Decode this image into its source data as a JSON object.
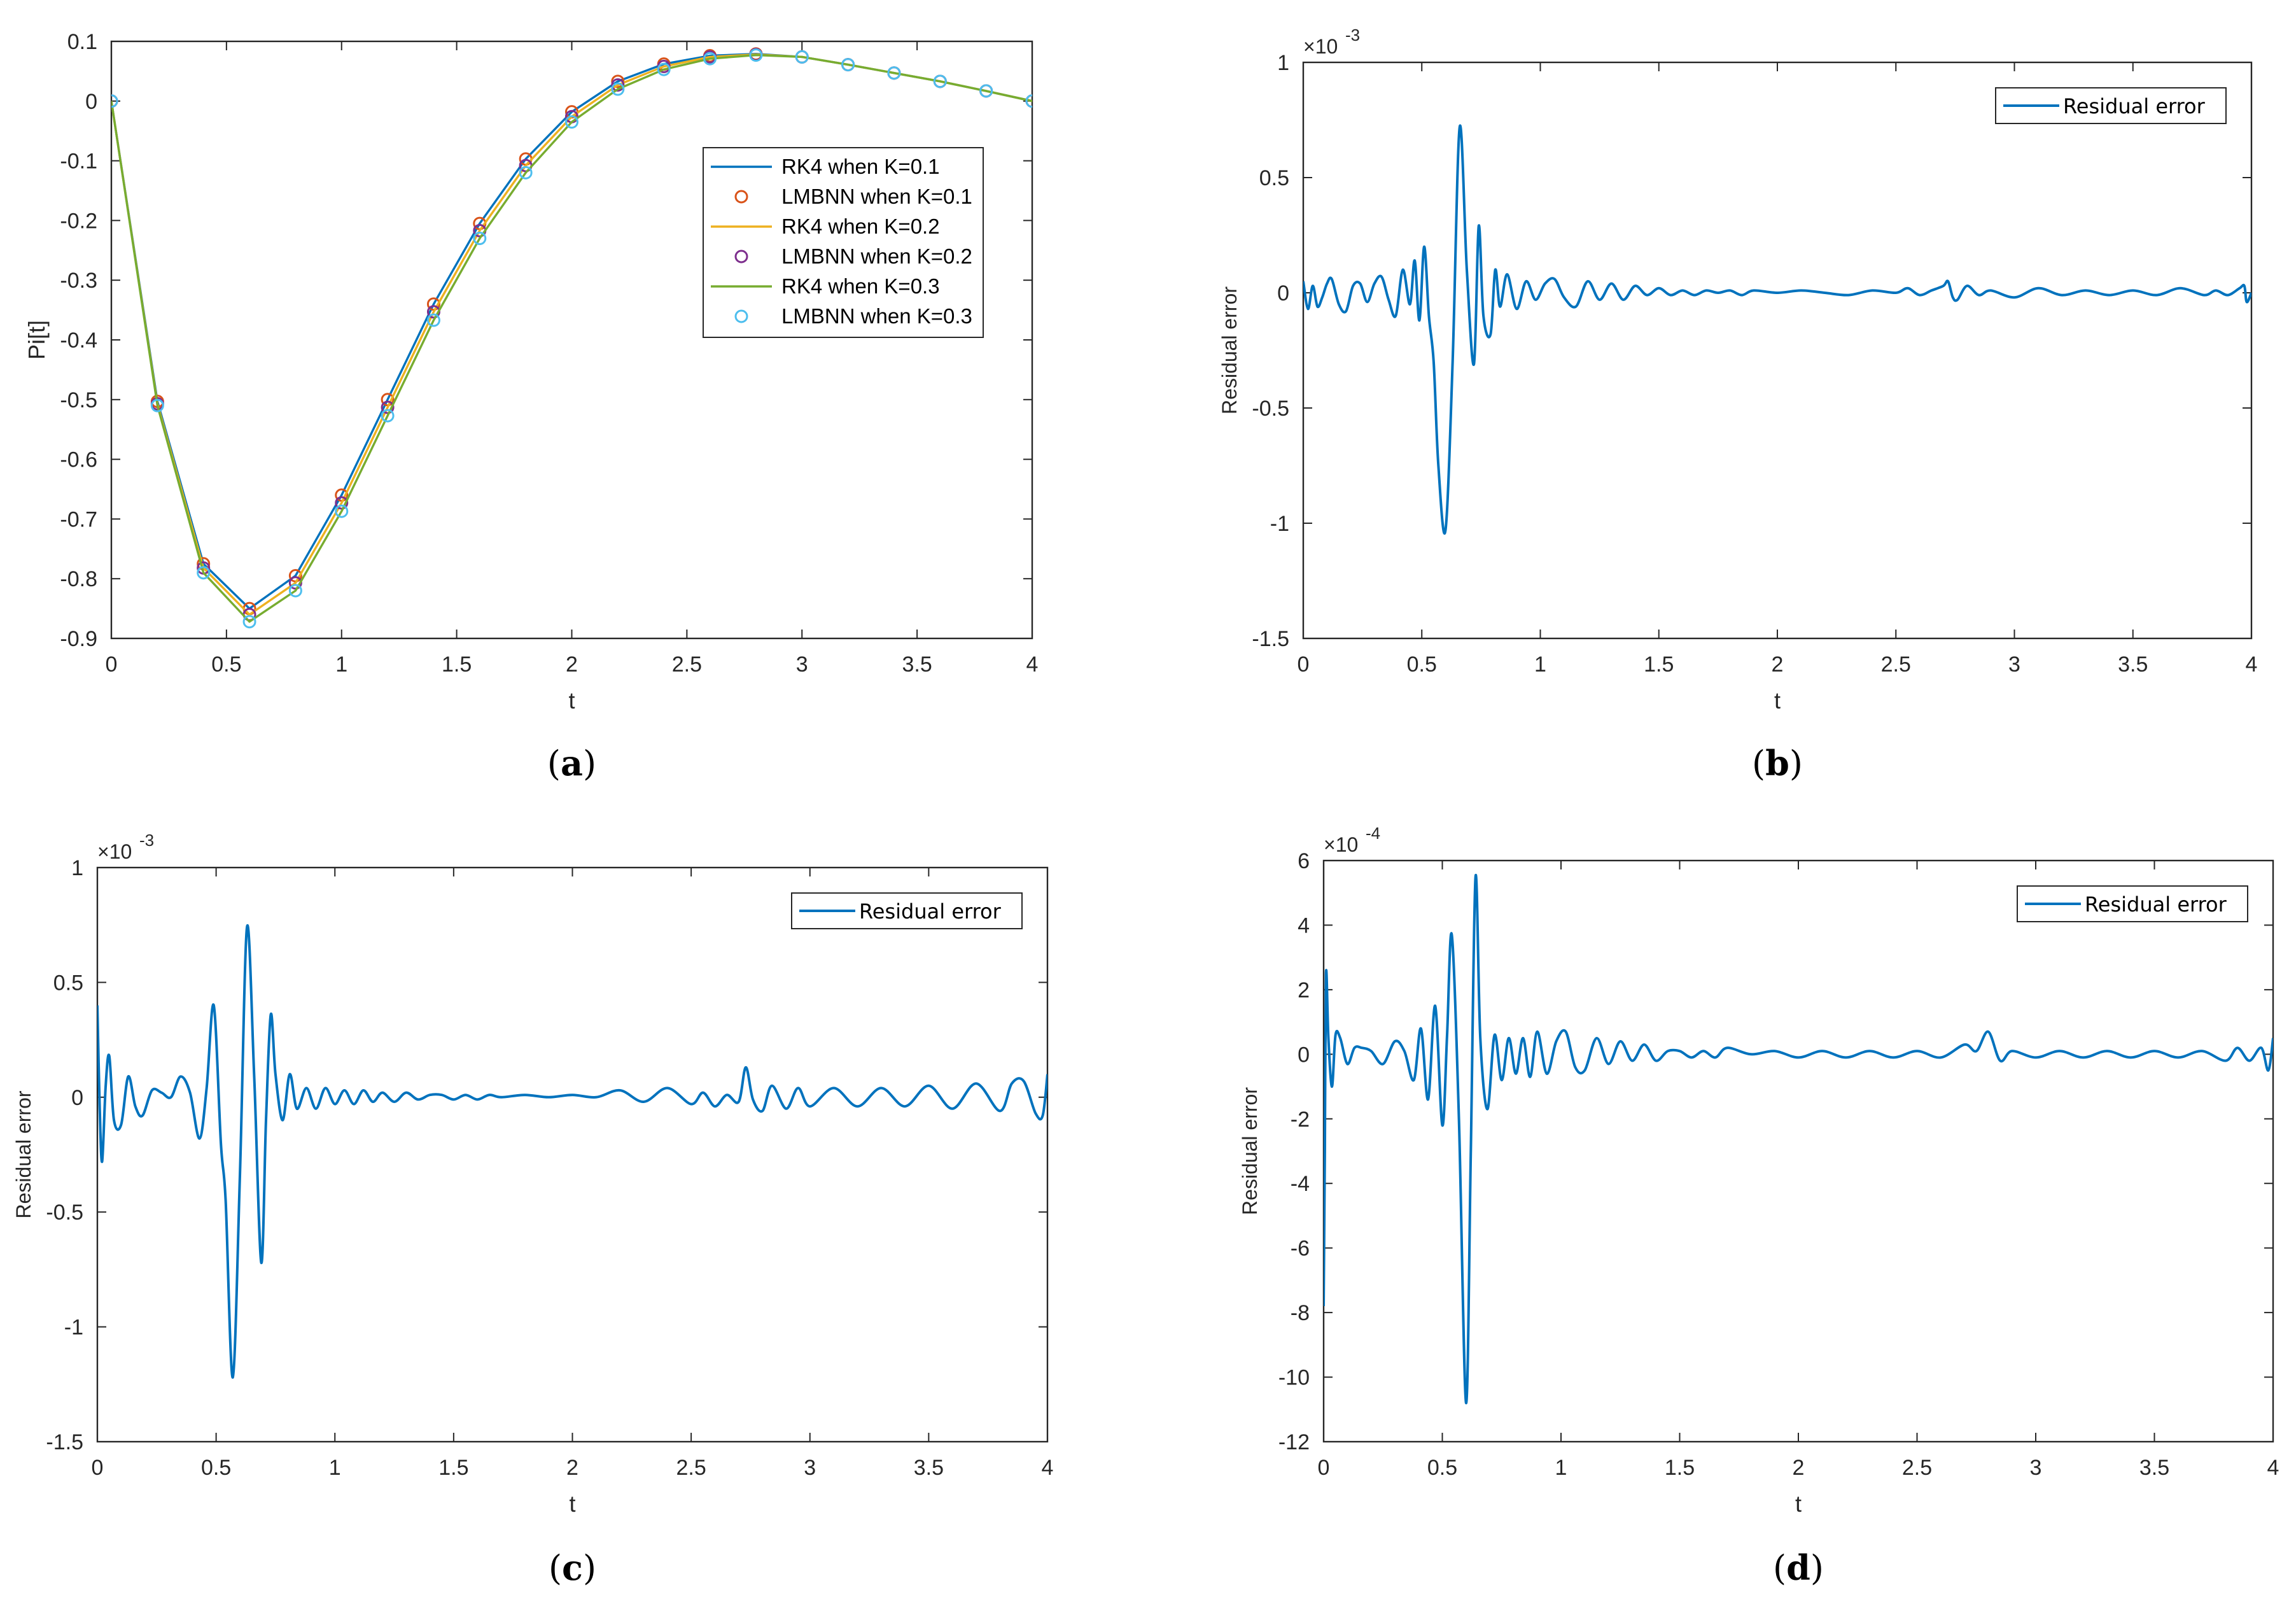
{
  "colors": {
    "rk4_k01": "#0072bd",
    "lmbnn_k01": "#d95319",
    "rk4_k02": "#edb120",
    "lmbnn_k02": "#7e2f8e",
    "rk4_k03": "#77ac30",
    "lmbnn_k03": "#4dbeee",
    "residual": "#0072bd",
    "axis": "#262626"
  },
  "chart_data": [
    {
      "id": "a",
      "type": "line",
      "caption": "a",
      "xlabel": "t",
      "ylabel": "Pi[t]",
      "xlim": [
        0,
        4
      ],
      "ylim": [
        -0.9,
        0.1
      ],
      "xticks": [
        0,
        0.5,
        1,
        1.5,
        2,
        2.5,
        3,
        3.5,
        4
      ],
      "xtick_labels": [
        "0",
        "0.5",
        "1",
        "1.5",
        "2",
        "2.5",
        "3",
        "3.5",
        "4"
      ],
      "yticks": [
        0.1,
        0,
        -0.1,
        -0.2,
        -0.3,
        -0.4,
        -0.5,
        -0.6,
        -0.7,
        -0.8,
        -0.9
      ],
      "ytick_labels": [
        "0.1",
        "0",
        "-0.1",
        "-0.2",
        "-0.3",
        "-0.4",
        "-0.5",
        "-0.6",
        "-0.7",
        "-0.8",
        "-0.9"
      ],
      "x": [
        0,
        0.2,
        0.4,
        0.6,
        0.8,
        1.0,
        1.2,
        1.4,
        1.6,
        1.8,
        2.0,
        2.2,
        2.4,
        2.6,
        2.8,
        3.0,
        3.2,
        3.4,
        3.6,
        3.8,
        4.0
      ],
      "legend_position": "upper-right",
      "series": [
        {
          "name": "RK4 when K=0.1",
          "style": "line",
          "color_key": "rk4_k01",
          "values": [
            0,
            -0.503,
            -0.775,
            -0.85,
            -0.795,
            -0.66,
            -0.5,
            -0.34,
            -0.205,
            -0.097,
            -0.018,
            0.033,
            0.062,
            0.076,
            0.079,
            0.074,
            0.061,
            0.047,
            0.033,
            0.017,
            0
          ]
        },
        {
          "name": "LMBNN when K=0.1",
          "style": "marker",
          "color_key": "lmbnn_k01",
          "values": [
            0,
            -0.503,
            -0.775,
            -0.85,
            -0.795,
            -0.66,
            -0.5,
            -0.34,
            -0.205,
            -0.097,
            -0.018,
            0.033,
            0.062,
            0.076,
            0.079,
            0.074,
            0.061,
            0.047,
            0.033,
            0.017,
            0
          ]
        },
        {
          "name": "RK4 when K=0.2",
          "style": "line",
          "color_key": "rk4_k02",
          "values": [
            0,
            -0.507,
            -0.782,
            -0.86,
            -0.807,
            -0.673,
            -0.513,
            -0.353,
            -0.217,
            -0.108,
            -0.026,
            0.027,
            0.058,
            0.074,
            0.078,
            0.074,
            0.061,
            0.047,
            0.033,
            0.017,
            0
          ]
        },
        {
          "name": "LMBNN when K=0.2",
          "style": "marker",
          "color_key": "lmbnn_k02",
          "values": [
            0,
            -0.507,
            -0.782,
            -0.86,
            -0.807,
            -0.673,
            -0.513,
            -0.353,
            -0.217,
            -0.108,
            -0.026,
            0.027,
            0.058,
            0.074,
            0.078,
            0.074,
            0.061,
            0.047,
            0.033,
            0.017,
            0
          ]
        },
        {
          "name": "RK4 when K=0.3",
          "style": "line",
          "color_key": "rk4_k03",
          "values": [
            0,
            -0.51,
            -0.79,
            -0.872,
            -0.82,
            -0.687,
            -0.527,
            -0.367,
            -0.23,
            -0.12,
            -0.035,
            0.02,
            0.053,
            0.071,
            0.077,
            0.074,
            0.061,
            0.047,
            0.033,
            0.017,
            0
          ]
        },
        {
          "name": "LMBNN when K=0.3",
          "style": "marker",
          "color_key": "lmbnn_k03",
          "values": [
            0,
            -0.51,
            -0.79,
            -0.872,
            -0.82,
            -0.687,
            -0.527,
            -0.367,
            -0.23,
            -0.12,
            -0.035,
            0.02,
            0.053,
            0.071,
            0.077,
            0.074,
            0.061,
            0.047,
            0.033,
            0.017,
            0
          ]
        }
      ]
    },
    {
      "id": "b",
      "type": "line",
      "caption": "b",
      "xlabel": "t",
      "ylabel": "Residual error",
      "exponent": "×10",
      "exponent_power": "-3",
      "xlim": [
        0,
        4
      ],
      "ylim": [
        -1.5,
        1
      ],
      "xticks": [
        0,
        0.5,
        1,
        1.5,
        2,
        2.5,
        3,
        3.5,
        4
      ],
      "xtick_labels": [
        "0",
        "0.5",
        "1",
        "1.5",
        "2",
        "2.5",
        "3",
        "3.5",
        "4"
      ],
      "yticks": [
        1,
        0.5,
        0,
        -0.5,
        -1,
        -1.5
      ],
      "ytick_labels": [
        "1",
        "0.5",
        "0",
        "-0.5",
        "-1",
        "-1.5"
      ],
      "legend_position": "upper-right",
      "series": [
        {
          "name": "Residual error",
          "color_key": "residual",
          "x": [
            0,
            0.02,
            0.04,
            0.06,
            0.08,
            0.1,
            0.12,
            0.15,
            0.18,
            0.21,
            0.24,
            0.27,
            0.3,
            0.33,
            0.36,
            0.39,
            0.42,
            0.45,
            0.47,
            0.49,
            0.51,
            0.53,
            0.55,
            0.57,
            0.6,
            0.63,
            0.66,
            0.69,
            0.72,
            0.74,
            0.76,
            0.79,
            0.81,
            0.83,
            0.86,
            0.9,
            0.94,
            0.98,
            1.02,
            1.06,
            1.1,
            1.15,
            1.2,
            1.25,
            1.3,
            1.35,
            1.4,
            1.45,
            1.5,
            1.55,
            1.6,
            1.65,
            1.7,
            1.75,
            1.8,
            1.85,
            1.9,
            2.0,
            2.1,
            2.2,
            2.3,
            2.4,
            2.5,
            2.55,
            2.6,
            2.65,
            2.7,
            2.72,
            2.74,
            2.76,
            2.8,
            2.85,
            2.9,
            3.0,
            3.1,
            3.2,
            3.3,
            3.4,
            3.5,
            3.6,
            3.7,
            3.8,
            3.85,
            3.9,
            3.95,
            3.97,
            3.98,
            4.0
          ],
          "values": [
            0.05,
            -0.07,
            0.03,
            -0.06,
            -0.02,
            0.04,
            0.06,
            -0.05,
            -0.08,
            0.03,
            0.04,
            -0.04,
            0.04,
            0.07,
            -0.03,
            -0.1,
            0.1,
            -0.05,
            0.14,
            -0.12,
            0.2,
            -0.1,
            -0.3,
            -0.75,
            -1.03,
            -0.3,
            0.72,
            0.1,
            -0.31,
            0.29,
            -0.1,
            -0.18,
            0.1,
            -0.06,
            0.08,
            -0.07,
            0.05,
            -0.03,
            0.04,
            0.06,
            -0.02,
            -0.06,
            0.05,
            -0.03,
            0.04,
            -0.03,
            0.03,
            -0.01,
            0.02,
            -0.01,
            0.01,
            -0.01,
            0.01,
            0,
            0.01,
            -0.01,
            0.01,
            0,
            0.01,
            0,
            -0.01,
            0.01,
            0,
            0.02,
            -0.01,
            0.01,
            0.03,
            0.05,
            -0.02,
            -0.03,
            0.03,
            -0.01,
            0.01,
            -0.02,
            0.02,
            -0.01,
            0.01,
            -0.01,
            0.01,
            -0.01,
            0.02,
            -0.01,
            0.01,
            -0.01,
            0.02,
            0.03,
            -0.04,
            0
          ]
        }
      ]
    },
    {
      "id": "c",
      "type": "line",
      "caption": "c",
      "xlabel": "t",
      "ylabel": "Residual error",
      "exponent": "×10",
      "exponent_power": "-3",
      "xlim": [
        0,
        4
      ],
      "ylim": [
        -1.5,
        1
      ],
      "xticks": [
        0,
        0.5,
        1,
        1.5,
        2,
        2.5,
        3,
        3.5,
        4
      ],
      "xtick_labels": [
        "0",
        "0.5",
        "1",
        "1.5",
        "2",
        "2.5",
        "3",
        "3.5",
        "4"
      ],
      "yticks": [
        1,
        0.5,
        0,
        -0.5,
        -1,
        -1.5
      ],
      "ytick_labels": [
        "1",
        "0.5",
        "0",
        "-0.5",
        "-1",
        "-1.5"
      ],
      "legend_position": "upper-right",
      "series": [
        {
          "name": "Residual error",
          "color_key": "residual",
          "x": [
            0,
            0.01,
            0.02,
            0.035,
            0.05,
            0.07,
            0.1,
            0.13,
            0.16,
            0.19,
            0.23,
            0.27,
            0.31,
            0.35,
            0.39,
            0.43,
            0.46,
            0.49,
            0.52,
            0.54,
            0.57,
            0.6,
            0.63,
            0.66,
            0.69,
            0.71,
            0.73,
            0.75,
            0.78,
            0.81,
            0.84,
            0.88,
            0.92,
            0.96,
            1.0,
            1.04,
            1.08,
            1.12,
            1.16,
            1.2,
            1.25,
            1.3,
            1.35,
            1.4,
            1.45,
            1.5,
            1.55,
            1.6,
            1.65,
            1.7,
            1.8,
            1.9,
            2.0,
            2.1,
            2.2,
            2.3,
            2.4,
            2.5,
            2.55,
            2.6,
            2.65,
            2.7,
            2.73,
            2.76,
            2.8,
            2.84,
            2.9,
            2.95,
            3.0,
            3.1,
            3.2,
            3.3,
            3.4,
            3.5,
            3.6,
            3.7,
            3.8,
            3.85,
            3.9,
            3.95,
            3.98,
            4.0
          ],
          "values": [
            0.4,
            -0.05,
            -0.28,
            0.05,
            0.18,
            -0.1,
            -0.12,
            0.09,
            -0.04,
            -0.08,
            0.03,
            0.02,
            0.0,
            0.09,
            0.02,
            -0.18,
            0.04,
            0.4,
            -0.2,
            -0.45,
            -1.22,
            -0.35,
            0.74,
            0.1,
            -0.72,
            -0.1,
            0.36,
            0.1,
            -0.1,
            0.1,
            -0.05,
            0.04,
            -0.05,
            0.04,
            -0.03,
            0.03,
            -0.03,
            0.03,
            -0.02,
            0.02,
            -0.02,
            0.02,
            -0.01,
            0.01,
            0.01,
            -0.01,
            0.01,
            -0.01,
            0.01,
            0,
            0.01,
            0,
            0.01,
            0,
            0.03,
            -0.02,
            0.04,
            -0.03,
            0.02,
            -0.04,
            0.01,
            -0.02,
            0.13,
            -0.01,
            -0.06,
            0.05,
            -0.05,
            0.04,
            -0.04,
            0.04,
            -0.04,
            0.04,
            -0.04,
            0.05,
            -0.05,
            0.06,
            -0.06,
            0.06,
            0.07,
            -0.07,
            -0.08,
            0.1
          ]
        }
      ]
    },
    {
      "id": "d",
      "type": "line",
      "caption": "d",
      "xlabel": "t",
      "ylabel": "Residual error",
      "exponent": "×10",
      "exponent_power": "-4",
      "xlim": [
        0,
        4
      ],
      "ylim": [
        -12,
        6
      ],
      "xticks": [
        0,
        0.5,
        1,
        1.5,
        2,
        2.5,
        3,
        3.5,
        4
      ],
      "xtick_labels": [
        "0",
        "0.5",
        "1",
        "1.5",
        "2",
        "2.5",
        "3",
        "3.5",
        "4"
      ],
      "yticks": [
        6,
        4,
        2,
        0,
        -2,
        -4,
        -6,
        -8,
        -10,
        -12
      ],
      "ytick_labels": [
        "6",
        "4",
        "2",
        "0",
        "-2",
        "-4",
        "-6",
        "-8",
        "-10",
        "-12"
      ],
      "legend_position": "upper-right",
      "series": [
        {
          "name": "Residual error",
          "color_key": "residual",
          "x": [
            0,
            0.005,
            0.01,
            0.02,
            0.035,
            0.05,
            0.07,
            0.1,
            0.13,
            0.16,
            0.2,
            0.25,
            0.3,
            0.34,
            0.38,
            0.41,
            0.44,
            0.47,
            0.5,
            0.52,
            0.54,
            0.57,
            0.6,
            0.62,
            0.64,
            0.66,
            0.69,
            0.72,
            0.75,
            0.78,
            0.81,
            0.84,
            0.87,
            0.9,
            0.94,
            0.98,
            1.02,
            1.06,
            1.1,
            1.15,
            1.2,
            1.25,
            1.3,
            1.35,
            1.4,
            1.45,
            1.5,
            1.55,
            1.6,
            1.65,
            1.7,
            1.8,
            1.9,
            2.0,
            2.1,
            2.2,
            2.3,
            2.4,
            2.5,
            2.6,
            2.7,
            2.75,
            2.8,
            2.85,
            2.9,
            3.0,
            3.1,
            3.2,
            3.3,
            3.4,
            3.5,
            3.6,
            3.7,
            3.8,
            3.85,
            3.9,
            3.95,
            3.98,
            4.0
          ],
          "values": [
            -7.8,
            -3,
            2.5,
            0.5,
            -1,
            0.6,
            0.5,
            -0.3,
            0.2,
            0.2,
            0.1,
            -0.3,
            0.4,
            0.1,
            -0.8,
            0.8,
            -1.4,
            1.5,
            -2.2,
            0.6,
            3.7,
            -2.0,
            -10.8,
            -3.0,
            5.5,
            0.5,
            -1.7,
            0.6,
            -0.8,
            0.5,
            -0.6,
            0.5,
            -0.7,
            0.7,
            -0.6,
            0.4,
            0.7,
            -0.4,
            -0.5,
            0.5,
            -0.3,
            0.4,
            -0.2,
            0.3,
            -0.2,
            0.1,
            0.1,
            -0.1,
            0.1,
            -0.1,
            0.2,
            0,
            0.1,
            -0.1,
            0.1,
            -0.1,
            0.1,
            -0.1,
            0.1,
            -0.1,
            0.3,
            0.1,
            0.7,
            -0.2,
            0.1,
            -0.1,
            0.1,
            -0.1,
            0.1,
            -0.1,
            0.1,
            -0.1,
            0.1,
            -0.2,
            0.2,
            -0.2,
            0.2,
            -0.5,
            0.5
          ]
        }
      ]
    }
  ]
}
